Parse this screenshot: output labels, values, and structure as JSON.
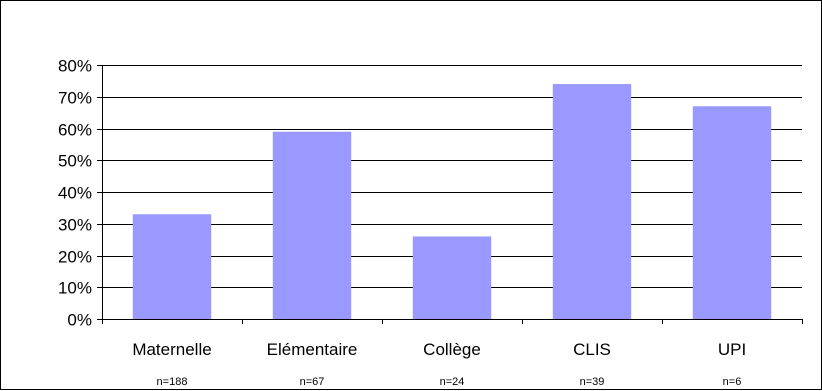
{
  "chart_data": {
    "type": "bar",
    "categories": [
      "Maternelle",
      "Elémentaire",
      "Collège",
      "CLIS",
      "UPI"
    ],
    "sample_sizes": [
      "n=188",
      "n=67",
      "n=24",
      "n=39",
      "n=6"
    ],
    "values": [
      33,
      59,
      26,
      74,
      67
    ],
    "ylim": [
      0,
      80
    ],
    "yticks": [
      0,
      10,
      20,
      30,
      40,
      50,
      60,
      70,
      80
    ],
    "ytick_labels": [
      "0%",
      "10%",
      "20%",
      "30%",
      "40%",
      "50%",
      "60%",
      "70%",
      "80%"
    ],
    "grid": true,
    "bar_color": "#9999ff",
    "title": "",
    "xlabel": "",
    "ylabel": ""
  }
}
